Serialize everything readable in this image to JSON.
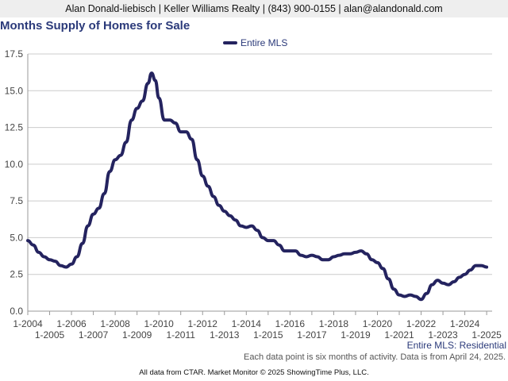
{
  "header": {
    "contact_line": "Alan Donald-liebisch | Keller Williams Realty | (843) 900-0155 | alan@alandonald.com"
  },
  "colors": {
    "series": "#24235f",
    "title": "#2b3a7a",
    "grid": "#cccccc",
    "header_bg": "#eeeeee"
  },
  "chart_data": {
    "type": "line",
    "title": "Months Supply of Homes for Sale",
    "xlabel": "",
    "ylabel": "",
    "ylim": [
      0,
      17.5
    ],
    "yticks": [
      "0.0",
      "2.5",
      "5.0",
      "7.5",
      "10.0",
      "12.5",
      "15.0",
      "17.5"
    ],
    "xlim": [
      "2004-01",
      "2025-04"
    ],
    "xticks_upper": [
      "1-2004",
      "1-2006",
      "1-2008",
      "1-2010",
      "1-2012",
      "1-2014",
      "1-2016",
      "1-2018",
      "1-2020",
      "1-2022",
      "1-2024"
    ],
    "xticks_lower": [
      "1-2005",
      "1-2007",
      "1-2009",
      "1-2011",
      "1-2013",
      "1-2015",
      "1-2017",
      "1-2019",
      "1-2021",
      "1-2023",
      "1-2025"
    ],
    "grid": true,
    "legend_position": "top-center",
    "source_label": "Entire MLS: Residential",
    "series": [
      {
        "name": "Entire MLS",
        "points": [
          [
            "2004-01",
            4.8
          ],
          [
            "2004-04",
            4.5
          ],
          [
            "2004-07",
            4.0
          ],
          [
            "2004-10",
            3.7
          ],
          [
            "2005-01",
            3.5
          ],
          [
            "2005-04",
            3.4
          ],
          [
            "2005-07",
            3.1
          ],
          [
            "2005-10",
            3.0
          ],
          [
            "2006-01",
            3.2
          ],
          [
            "2006-04",
            3.7
          ],
          [
            "2006-07",
            4.6
          ],
          [
            "2006-10",
            5.8
          ],
          [
            "2007-01",
            6.6
          ],
          [
            "2007-04",
            7.0
          ],
          [
            "2007-07",
            8.0
          ],
          [
            "2007-10",
            9.5
          ],
          [
            "2008-01",
            10.3
          ],
          [
            "2008-04",
            10.6
          ],
          [
            "2008-07",
            11.5
          ],
          [
            "2008-10",
            13.0
          ],
          [
            "2009-01",
            13.8
          ],
          [
            "2009-04",
            14.3
          ],
          [
            "2009-07",
            15.5
          ],
          [
            "2009-09",
            16.2
          ],
          [
            "2009-11",
            15.7
          ],
          [
            "2010-01",
            14.5
          ],
          [
            "2010-04",
            13.0
          ],
          [
            "2010-07",
            13.0
          ],
          [
            "2010-10",
            12.8
          ],
          [
            "2011-01",
            12.2
          ],
          [
            "2011-04",
            12.2
          ],
          [
            "2011-07",
            11.7
          ],
          [
            "2011-10",
            10.3
          ],
          [
            "2012-01",
            9.2
          ],
          [
            "2012-04",
            8.5
          ],
          [
            "2012-07",
            7.8
          ],
          [
            "2012-10",
            7.2
          ],
          [
            "2013-01",
            6.8
          ],
          [
            "2013-04",
            6.5
          ],
          [
            "2013-07",
            6.2
          ],
          [
            "2013-10",
            5.8
          ],
          [
            "2014-01",
            5.7
          ],
          [
            "2014-04",
            5.8
          ],
          [
            "2014-07",
            5.5
          ],
          [
            "2014-10",
            5.0
          ],
          [
            "2015-01",
            4.8
          ],
          [
            "2015-04",
            4.8
          ],
          [
            "2015-07",
            4.5
          ],
          [
            "2015-10",
            4.1
          ],
          [
            "2016-01",
            4.1
          ],
          [
            "2016-04",
            4.1
          ],
          [
            "2016-07",
            3.8
          ],
          [
            "2016-10",
            3.7
          ],
          [
            "2017-01",
            3.8
          ],
          [
            "2017-04",
            3.7
          ],
          [
            "2017-07",
            3.5
          ],
          [
            "2017-10",
            3.5
          ],
          [
            "2018-01",
            3.7
          ],
          [
            "2018-04",
            3.8
          ],
          [
            "2018-07",
            3.9
          ],
          [
            "2018-10",
            3.9
          ],
          [
            "2019-01",
            4.0
          ],
          [
            "2019-04",
            4.1
          ],
          [
            "2019-07",
            3.9
          ],
          [
            "2019-10",
            3.5
          ],
          [
            "2020-01",
            3.3
          ],
          [
            "2020-04",
            2.9
          ],
          [
            "2020-07",
            2.2
          ],
          [
            "2020-10",
            1.5
          ],
          [
            "2021-01",
            1.1
          ],
          [
            "2021-04",
            1.0
          ],
          [
            "2021-07",
            1.1
          ],
          [
            "2021-10",
            1.0
          ],
          [
            "2022-01",
            0.8
          ],
          [
            "2022-04",
            1.2
          ],
          [
            "2022-07",
            1.8
          ],
          [
            "2022-10",
            2.1
          ],
          [
            "2023-01",
            1.9
          ],
          [
            "2023-04",
            1.8
          ],
          [
            "2023-07",
            2.0
          ],
          [
            "2023-10",
            2.3
          ],
          [
            "2024-01",
            2.5
          ],
          [
            "2024-04",
            2.8
          ],
          [
            "2024-07",
            3.1
          ],
          [
            "2024-10",
            3.1
          ],
          [
            "2025-01",
            3.0
          ]
        ]
      }
    ]
  },
  "footnote": "Each data point is six months of activity. Data is from April 24, 2025.",
  "footer": {
    "credit": "All data from CTAR. Market Monitor © 2025 ShowingTime Plus, LLC."
  }
}
